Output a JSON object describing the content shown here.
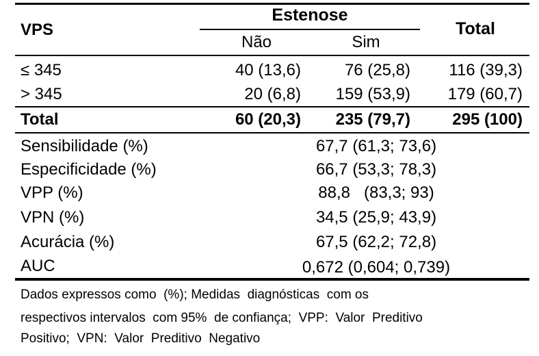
{
  "header": {
    "vps": "VPS",
    "estenose": "Estenose",
    "nao": "Não",
    "sim": "Sim",
    "total": "Total"
  },
  "rows": [
    {
      "label": "≤ 345",
      "nao": "40 (13,6)",
      "sim": "76 (25,8)",
      "total": "116 (39,3)"
    },
    {
      "label": "> 345",
      "nao": "20 (6,8)",
      "sim": "159 (53,9)",
      "total": "179 (60,7)"
    }
  ],
  "total_row": {
    "label": "Total",
    "nao": "60 (20,3)",
    "sim": "235 (79,7)",
    "total": "295 (100)"
  },
  "metrics": [
    {
      "label": "Sensibilidade (%)",
      "value": "67,7 (61,3; 73,6)"
    },
    {
      "label": "Especificidade (%)",
      "value": "66,7 (53,3; 78,3)"
    },
    {
      "label": "VPP (%)",
      "value": "88,8   (83,3; 93)"
    },
    {
      "label": "VPN (%)",
      "value": "34,5 (25,9; 43,9)"
    },
    {
      "label": "Acurácia (%)",
      "value": "67,5 (62,2; 72,8)"
    },
    {
      "label": "AUC",
      "value": "0,672 (0,604; 0,739)"
    }
  ],
  "footnote": {
    "line1": "Dados expressos como  (%); Medidas  diagnósticas  com os",
    "line2": "respectivos intervalos  com 95%  de confiança;  VPP:  Valor  Preditivo",
    "line3": "Positivo;  VPN:  Valor  Preditivo  Negativo"
  }
}
